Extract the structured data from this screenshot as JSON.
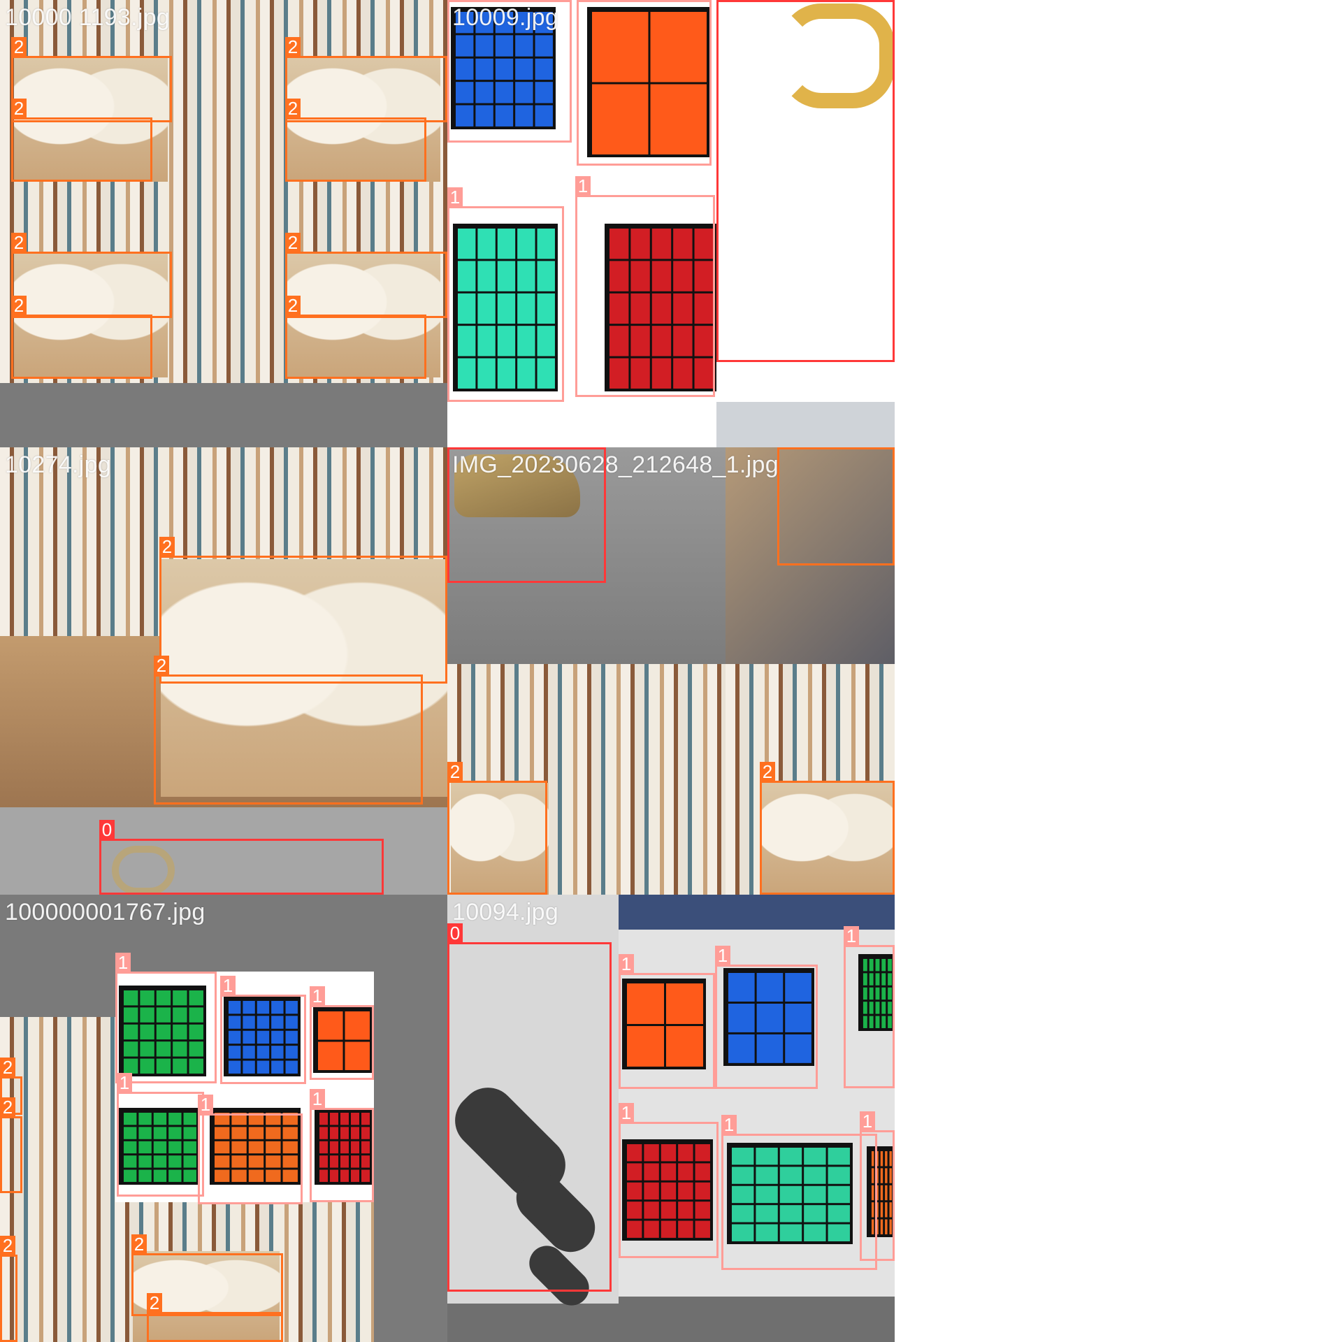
{
  "mosaic": {
    "tiles": [
      {
        "label": "10000 1193.jpg"
      },
      {
        "label": "10009.jpg"
      },
      {
        "label": "10274.jpg"
      },
      {
        "label": "IMG_20230628_212648_1.jpg"
      },
      {
        "label": "100000001767.jpg"
      },
      {
        "label": "10094.jpg"
      }
    ]
  },
  "class_ids": [
    "0",
    "1",
    "2"
  ],
  "colors": {
    "class_0": "#ff3838",
    "class_1": "#ff9d97",
    "class_2": "#ff701f",
    "letterbox": "#7a7a7a"
  }
}
